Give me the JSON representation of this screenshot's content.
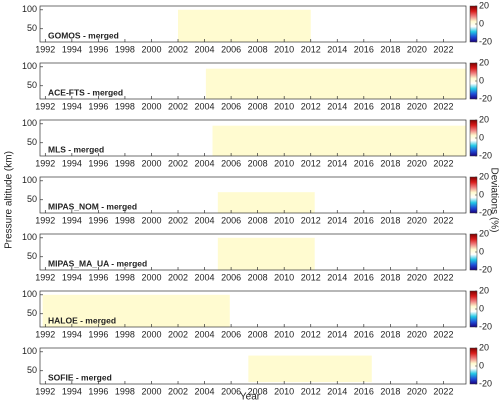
{
  "figure": {
    "xlabel": "Year",
    "ylabel": "Pressure altitude (km)",
    "colorbar_label": "Deviations (%)",
    "colormap": [
      "#1a0080",
      "#1f4fd8",
      "#22c8e6",
      "#ffffff",
      "#fffbd0",
      "#f08080",
      "#d81a1a",
      "#800000"
    ]
  },
  "chart_data": [
    {
      "type": "heatmap",
      "title": "GOMOS - merged",
      "coverage": [
        2002,
        2012
      ],
      "altitude": [
        15,
        100
      ],
      "fill": "#fffbd0",
      "xlim": [
        1991.6,
        2023.7
      ],
      "xticks": [
        1992,
        1994,
        1996,
        1998,
        2000,
        2002,
        2004,
        2006,
        2008,
        2010,
        2012,
        2014,
        2016,
        2018,
        2020,
        2022
      ],
      "ylim": [
        15,
        110
      ],
      "yticks": [
        50,
        100
      ],
      "clim": [
        -20,
        20
      ],
      "cticks": [
        -20,
        0,
        20
      ]
    },
    {
      "type": "heatmap",
      "title": "ACE-FTS - merged",
      "coverage": [
        2004.1,
        2023.7
      ],
      "altitude": [
        15,
        95
      ],
      "fill": "#fffbd0",
      "xlim": [
        1991.6,
        2023.7
      ],
      "xticks": [
        1992,
        1994,
        1996,
        1998,
        2000,
        2002,
        2004,
        2006,
        2008,
        2010,
        2012,
        2014,
        2016,
        2018,
        2020,
        2022
      ],
      "ylim": [
        15,
        110
      ],
      "yticks": [
        50,
        100
      ],
      "clim": [
        -20,
        20
      ],
      "cticks": [
        -20,
        0,
        20
      ]
    },
    {
      "type": "heatmap",
      "title": "MLS - merged",
      "coverage": [
        2004.6,
        2023.7
      ],
      "altitude": [
        15,
        95
      ],
      "fill": "#fffbd0",
      "xlim": [
        1991.6,
        2023.7
      ],
      "xticks": [
        1992,
        1994,
        1996,
        1998,
        2000,
        2002,
        2004,
        2006,
        2008,
        2010,
        2012,
        2014,
        2016,
        2018,
        2020,
        2022
      ],
      "ylim": [
        15,
        110
      ],
      "yticks": [
        50,
        100
      ],
      "clim": [
        -20,
        20
      ],
      "cticks": [
        -20,
        0,
        20
      ]
    },
    {
      "type": "heatmap",
      "title": "MIPAS_NOM - merged",
      "coverage": [
        2005,
        2012.3
      ],
      "altitude": [
        15,
        70
      ],
      "fill": "#fffbd0",
      "xlim": [
        1991.6,
        2023.7
      ],
      "xticks": [
        1992,
        1994,
        1996,
        1998,
        2000,
        2002,
        2004,
        2006,
        2008,
        2010,
        2012,
        2014,
        2016,
        2018,
        2020,
        2022
      ],
      "ylim": [
        15,
        110
      ],
      "yticks": [
        50,
        100
      ],
      "clim": [
        -20,
        20
      ],
      "cticks": [
        -20,
        0,
        20
      ]
    },
    {
      "type": "heatmap",
      "title": "MIPAS_MA_UA - merged",
      "coverage": [
        2005,
        2012.3
      ],
      "altitude": [
        15,
        100
      ],
      "fill": "#fffbd0",
      "xlim": [
        1991.6,
        2023.7
      ],
      "xticks": [
        1992,
        1994,
        1996,
        1998,
        2000,
        2002,
        2004,
        2006,
        2008,
        2010,
        2012,
        2014,
        2016,
        2018,
        2020,
        2022
      ],
      "ylim": [
        15,
        110
      ],
      "yticks": [
        50,
        100
      ],
      "clim": [
        -20,
        20
      ],
      "cticks": [
        -20,
        0,
        20
      ]
    },
    {
      "type": "heatmap",
      "title": "HALOE - merged",
      "coverage": [
        1991.8,
        2005.9
      ],
      "altitude": [
        15,
        100
      ],
      "fill": "#fffbd0",
      "xlim": [
        1991.6,
        2023.7
      ],
      "xticks": [
        1992,
        1994,
        1996,
        1998,
        2000,
        2002,
        2004,
        2006,
        2008,
        2010,
        2012,
        2014,
        2016,
        2018,
        2020,
        2022
      ],
      "ylim": [
        15,
        110
      ],
      "yticks": [
        50,
        100
      ],
      "clim": [
        -20,
        20
      ],
      "cticks": [
        -20,
        0,
        20
      ]
    },
    {
      "type": "heatmap",
      "title": "SOFIE - merged",
      "coverage": [
        2007.3,
        2016.6
      ],
      "altitude": [
        20,
        90
      ],
      "fill": "#fffbd0",
      "xlim": [
        1991.6,
        2023.7
      ],
      "xticks": [
        1992,
        1994,
        1996,
        1998,
        2000,
        2002,
        2004,
        2006,
        2008,
        2010,
        2012,
        2014,
        2016,
        2018,
        2020,
        2022
      ],
      "ylim": [
        15,
        110
      ],
      "yticks": [
        50,
        100
      ],
      "clim": [
        -20,
        20
      ],
      "cticks": [
        -20,
        0,
        20
      ]
    }
  ]
}
